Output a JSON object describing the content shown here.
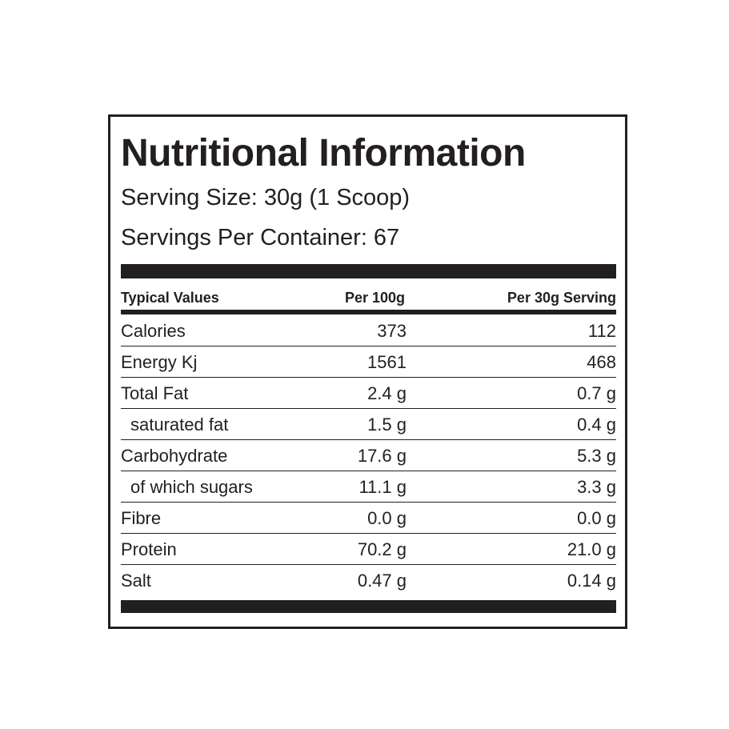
{
  "title": "Nutritional Information",
  "serving_size": "Serving Size: 30g (1 Scoop)",
  "servings_per_container": "Servings Per Container:  67",
  "table": {
    "header": [
      "Typical Values",
      "Per 100g",
      "Per 30g  Serving"
    ],
    "rows": [
      [
        "Calories",
        "373",
        "112"
      ],
      [
        "Energy Kj",
        "1561",
        "468"
      ],
      [
        "Total Fat",
        "2.4 g",
        "0.7 g"
      ],
      [
        "saturated fat",
        "1.5 g",
        "0.4 g"
      ],
      [
        "Carbohydrate",
        "17.6 g",
        "5.3 g"
      ],
      [
        "of which sugars",
        "11.1 g",
        "3.3 g"
      ],
      [
        "Fibre",
        "0.0 g",
        "0.0 g"
      ],
      [
        "Protein",
        "70.2 g",
        "21.0 g"
      ],
      [
        "Salt",
        "0.47 g",
        "0.14 g"
      ]
    ]
  }
}
